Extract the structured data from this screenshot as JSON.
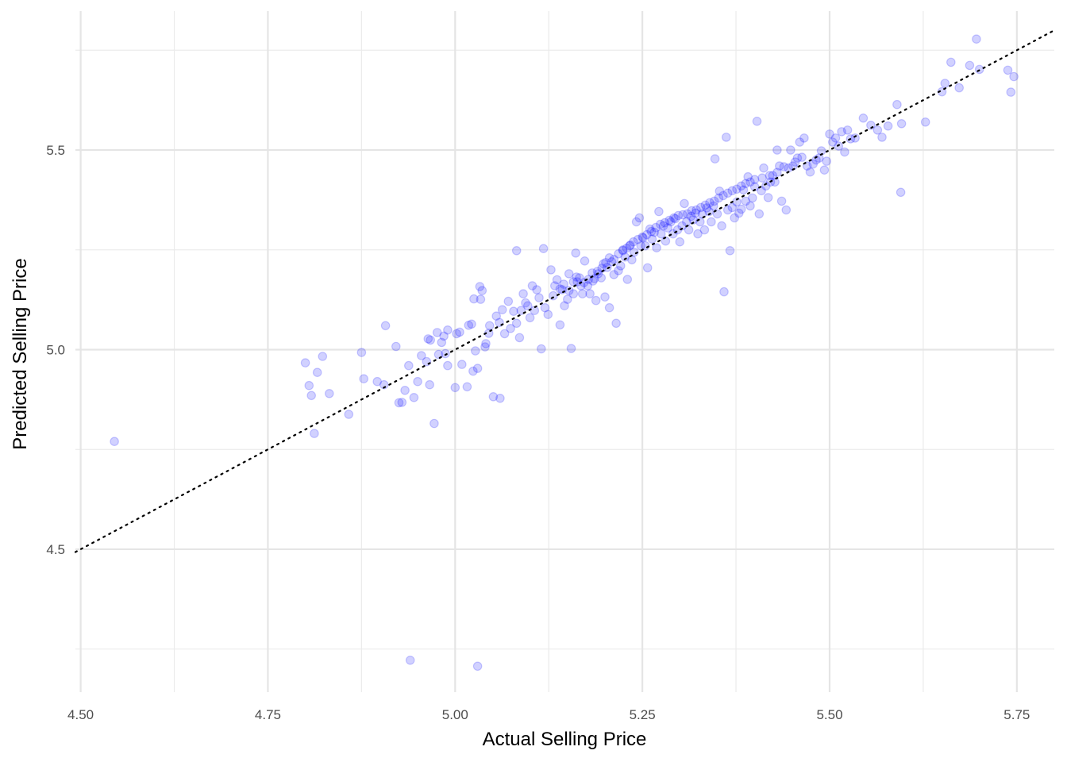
{
  "chart_data": {
    "type": "scatter",
    "xlabel": "Actual Selling Price",
    "ylabel": "Predicted Selling Price",
    "xlim": [
      4.493,
      5.8
    ],
    "ylim": [
      4.142,
      5.848
    ],
    "x_ticks": [
      4.5,
      4.75,
      5.0,
      5.25,
      5.5,
      5.75
    ],
    "x_tick_labels": [
      "4.50",
      "4.75",
      "5.00",
      "5.25",
      "5.50",
      "5.75"
    ],
    "y_ticks": [
      4.5,
      5.0,
      5.5
    ],
    "y_tick_labels": [
      "4.5",
      "5.0",
      "5.5"
    ],
    "grid": true,
    "point_color": "#0000ff",
    "point_alpha": 0.18,
    "reference_line": {
      "type": "identity",
      "style": "dotted",
      "color": "#000000"
    },
    "points": [
      [
        4.545,
        4.77
      ],
      [
        4.94,
        4.222
      ],
      [
        5.03,
        4.207
      ],
      [
        4.8,
        4.967
      ],
      [
        4.805,
        4.91
      ],
      [
        4.808,
        4.885
      ],
      [
        4.812,
        4.79
      ],
      [
        4.816,
        4.943
      ],
      [
        4.823,
        4.983
      ],
      [
        4.832,
        4.89
      ],
      [
        4.858,
        4.838
      ],
      [
        4.875,
        4.993
      ],
      [
        4.878,
        4.927
      ],
      [
        4.896,
        4.92
      ],
      [
        4.905,
        4.912
      ],
      [
        4.907,
        5.06
      ],
      [
        4.921,
        5.008
      ],
      [
        4.925,
        4.867
      ],
      [
        4.929,
        4.868
      ],
      [
        4.933,
        4.898
      ],
      [
        4.938,
        4.96
      ],
      [
        4.945,
        4.88
      ],
      [
        4.95,
        4.92
      ],
      [
        4.955,
        4.985
      ],
      [
        4.962,
        4.97
      ],
      [
        4.966,
        4.912
      ],
      [
        4.972,
        4.815
      ],
      [
        4.976,
        5.043
      ],
      [
        4.978,
        4.988
      ],
      [
        4.982,
        5.018
      ],
      [
        4.987,
        4.99
      ],
      [
        4.99,
        4.96
      ],
      [
        5.0,
        4.905
      ],
      [
        5.002,
        5.04
      ],
      [
        5.009,
        4.963
      ],
      [
        5.016,
        4.907
      ],
      [
        5.022,
        5.064
      ],
      [
        5.024,
        4.946
      ],
      [
        5.027,
        4.997
      ],
      [
        5.03,
        4.953
      ],
      [
        5.033,
        5.158
      ],
      [
        5.036,
        5.148
      ],
      [
        5.041,
        5.015
      ],
      [
        5.046,
        5.06
      ],
      [
        5.051,
        4.882
      ],
      [
        5.06,
        4.878
      ],
      [
        5.063,
        5.1
      ],
      [
        4.964,
        5.027
      ],
      [
        4.967,
        5.024
      ],
      [
        4.985,
        5.034
      ],
      [
        4.99,
        5.049
      ],
      [
        5.006,
        5.044
      ],
      [
        5.018,
        5.061
      ],
      [
        5.025,
        5.127
      ],
      [
        5.034,
        5.126
      ],
      [
        5.04,
        5.007
      ],
      [
        5.045,
        5.041
      ],
      [
        5.055,
        5.084
      ],
      [
        5.059,
        5.068
      ],
      [
        5.066,
        5.04
      ],
      [
        5.071,
        5.121
      ],
      [
        5.074,
        5.053
      ],
      [
        5.078,
        5.096
      ],
      [
        5.082,
        5.066
      ],
      [
        5.086,
        5.03
      ],
      [
        5.088,
        5.098
      ],
      [
        5.091,
        5.14
      ],
      [
        5.094,
        5.117
      ],
      [
        5.097,
        5.11
      ],
      [
        5.082,
        5.248
      ],
      [
        5.1,
        5.08
      ],
      [
        5.103,
        5.16
      ],
      [
        5.106,
        5.098
      ],
      [
        5.109,
        5.15
      ],
      [
        5.112,
        5.13
      ],
      [
        5.115,
        5.002
      ],
      [
        5.118,
        5.253
      ],
      [
        5.12,
        5.105
      ],
      [
        5.124,
        5.088
      ],
      [
        5.128,
        5.2
      ],
      [
        5.131,
        5.135
      ],
      [
        5.133,
        5.16
      ],
      [
        5.136,
        5.175
      ],
      [
        5.14,
        5.062
      ],
      [
        5.143,
        5.15
      ],
      [
        5.146,
        5.11
      ],
      [
        5.15,
        5.126
      ],
      [
        5.152,
        5.19
      ],
      [
        5.155,
        5.003
      ],
      [
        5.158,
        5.14
      ],
      [
        5.161,
        5.242
      ],
      [
        5.163,
        5.17
      ],
      [
        5.166,
        5.18
      ],
      [
        5.17,
        5.14
      ],
      [
        5.173,
        5.222
      ],
      [
        5.177,
        5.16
      ],
      [
        5.18,
        5.14
      ],
      [
        5.183,
        5.192
      ],
      [
        5.186,
        5.178
      ],
      [
        5.188,
        5.123
      ],
      [
        5.191,
        5.19
      ],
      [
        5.195,
        5.18
      ],
      [
        5.198,
        5.215
      ],
      [
        5.2,
        5.132
      ],
      [
        5.203,
        5.206
      ],
      [
        5.206,
        5.105
      ],
      [
        5.209,
        5.22
      ],
      [
        5.212,
        5.188
      ],
      [
        5.215,
        5.066
      ],
      [
        5.218,
        5.198
      ],
      [
        5.221,
        5.21
      ],
      [
        5.224,
        5.25
      ],
      [
        5.227,
        5.232
      ],
      [
        5.23,
        5.176
      ],
      [
        5.233,
        5.26
      ],
      [
        5.236,
        5.225
      ],
      [
        5.239,
        5.244
      ],
      [
        5.242,
        5.32
      ],
      [
        5.246,
        5.33
      ],
      [
        5.248,
        5.26
      ],
      [
        5.251,
        5.28
      ],
      [
        5.254,
        5.26
      ],
      [
        5.257,
        5.205
      ],
      [
        5.26,
        5.302
      ],
      [
        5.263,
        5.277
      ],
      [
        5.266,
        5.294
      ],
      [
        5.269,
        5.255
      ],
      [
        5.272,
        5.346
      ],
      [
        5.275,
        5.29
      ],
      [
        5.278,
        5.31
      ],
      [
        5.281,
        5.272
      ],
      [
        5.284,
        5.305
      ],
      [
        5.288,
        5.32
      ],
      [
        5.291,
        5.29
      ],
      [
        5.294,
        5.328
      ],
      [
        5.297,
        5.3
      ],
      [
        5.3,
        5.27
      ],
      [
        5.303,
        5.31
      ],
      [
        5.306,
        5.366
      ],
      [
        5.309,
        5.32
      ],
      [
        5.312,
        5.3
      ],
      [
        5.315,
        5.334
      ],
      [
        5.318,
        5.325
      ],
      [
        5.321,
        5.342
      ],
      [
        5.324,
        5.29
      ],
      [
        5.327,
        5.32
      ],
      [
        5.33,
        5.34
      ],
      [
        5.333,
        5.3
      ],
      [
        5.336,
        5.355
      ],
      [
        5.339,
        5.346
      ],
      [
        5.342,
        5.32
      ],
      [
        5.345,
        5.36
      ],
      [
        5.347,
        5.478
      ],
      [
        5.35,
        5.34
      ],
      [
        5.353,
        5.397
      ],
      [
        5.356,
        5.31
      ],
      [
        5.359,
        5.145
      ],
      [
        5.362,
        5.532
      ],
      [
        5.364,
        5.35
      ],
      [
        5.367,
        5.248
      ],
      [
        5.37,
        5.356
      ],
      [
        5.373,
        5.33
      ],
      [
        5.376,
        5.37
      ],
      [
        5.379,
        5.342
      ],
      [
        5.382,
        5.352
      ],
      [
        5.385,
        5.4
      ],
      [
        5.388,
        5.372
      ],
      [
        5.391,
        5.433
      ],
      [
        5.394,
        5.36
      ],
      [
        5.397,
        5.38
      ],
      [
        5.4,
        5.408
      ],
      [
        5.403,
        5.572
      ],
      [
        5.406,
        5.34
      ],
      [
        5.409,
        5.398
      ],
      [
        5.412,
        5.455
      ],
      [
        5.415,
        5.41
      ],
      [
        5.418,
        5.381
      ],
      [
        5.421,
        5.42
      ],
      [
        5.424,
        5.436
      ],
      [
        5.427,
        5.42
      ],
      [
        5.43,
        5.5
      ],
      [
        5.433,
        5.46
      ],
      [
        5.436,
        5.372
      ],
      [
        5.439,
        5.458
      ],
      [
        5.442,
        5.35
      ],
      [
        5.445,
        5.455
      ],
      [
        5.448,
        5.5
      ],
      [
        5.451,
        5.46
      ],
      [
        5.454,
        5.47
      ],
      [
        5.457,
        5.48
      ],
      [
        5.46,
        5.52
      ],
      [
        5.463,
        5.482
      ],
      [
        5.466,
        5.53
      ],
      [
        5.47,
        5.46
      ],
      [
        5.474,
        5.445
      ],
      [
        5.478,
        5.465
      ],
      [
        5.482,
        5.475
      ],
      [
        5.486,
        5.48
      ],
      [
        5.489,
        5.498
      ],
      [
        5.493,
        5.45
      ],
      [
        5.496,
        5.472
      ],
      [
        5.5,
        5.54
      ],
      [
        5.504,
        5.52
      ],
      [
        5.508,
        5.53
      ],
      [
        5.512,
        5.51
      ],
      [
        5.516,
        5.546
      ],
      [
        5.52,
        5.495
      ],
      [
        5.524,
        5.55
      ],
      [
        5.528,
        5.528
      ],
      [
        5.534,
        5.53
      ],
      [
        5.545,
        5.58
      ],
      [
        5.555,
        5.562
      ],
      [
        5.564,
        5.55
      ],
      [
        5.57,
        5.532
      ],
      [
        5.578,
        5.56
      ],
      [
        5.59,
        5.614
      ],
      [
        5.595,
        5.394
      ],
      [
        5.596,
        5.566
      ],
      [
        5.628,
        5.57
      ],
      [
        5.65,
        5.646
      ],
      [
        5.654,
        5.667
      ],
      [
        5.662,
        5.72
      ],
      [
        5.673,
        5.656
      ],
      [
        5.687,
        5.712
      ],
      [
        5.696,
        5.778
      ],
      [
        5.7,
        5.702
      ],
      [
        5.738,
        5.7
      ],
      [
        5.742,
        5.645
      ],
      [
        5.746,
        5.684
      ],
      [
        5.14,
        5.152
      ],
      [
        5.145,
        5.164
      ],
      [
        5.152,
        5.148
      ],
      [
        5.158,
        5.17
      ],
      [
        5.162,
        5.182
      ],
      [
        5.168,
        5.16
      ],
      [
        5.172,
        5.168
      ],
      [
        5.178,
        5.176
      ],
      [
        5.184,
        5.172
      ],
      [
        5.19,
        5.196
      ],
      [
        5.196,
        5.204
      ],
      [
        5.201,
        5.218
      ],
      [
        5.206,
        5.23
      ],
      [
        5.212,
        5.226
      ],
      [
        5.218,
        5.24
      ],
      [
        5.224,
        5.248
      ],
      [
        5.229,
        5.254
      ],
      [
        5.234,
        5.262
      ],
      [
        5.238,
        5.27
      ],
      [
        5.244,
        5.276
      ],
      [
        5.25,
        5.282
      ],
      [
        5.256,
        5.288
      ],
      [
        5.262,
        5.296
      ],
      [
        5.268,
        5.306
      ],
      [
        5.274,
        5.314
      ],
      [
        5.28,
        5.318
      ],
      [
        5.286,
        5.324
      ],
      [
        5.292,
        5.33
      ],
      [
        5.298,
        5.336
      ],
      [
        5.304,
        5.338
      ],
      [
        5.31,
        5.34
      ],
      [
        5.316,
        5.348
      ],
      [
        5.322,
        5.35
      ],
      [
        5.328,
        5.356
      ],
      [
        5.334,
        5.362
      ],
      [
        5.34,
        5.368
      ],
      [
        5.346,
        5.372
      ],
      [
        5.352,
        5.38
      ],
      [
        5.358,
        5.386
      ],
      [
        5.364,
        5.392
      ],
      [
        5.37,
        5.398
      ],
      [
        5.376,
        5.402
      ],
      [
        5.382,
        5.41
      ],
      [
        5.388,
        5.416
      ],
      [
        5.394,
        5.42
      ],
      [
        5.4,
        5.426
      ],
      [
        5.41,
        5.43
      ],
      [
        5.42,
        5.436
      ],
      [
        5.43,
        5.444
      ]
    ]
  }
}
